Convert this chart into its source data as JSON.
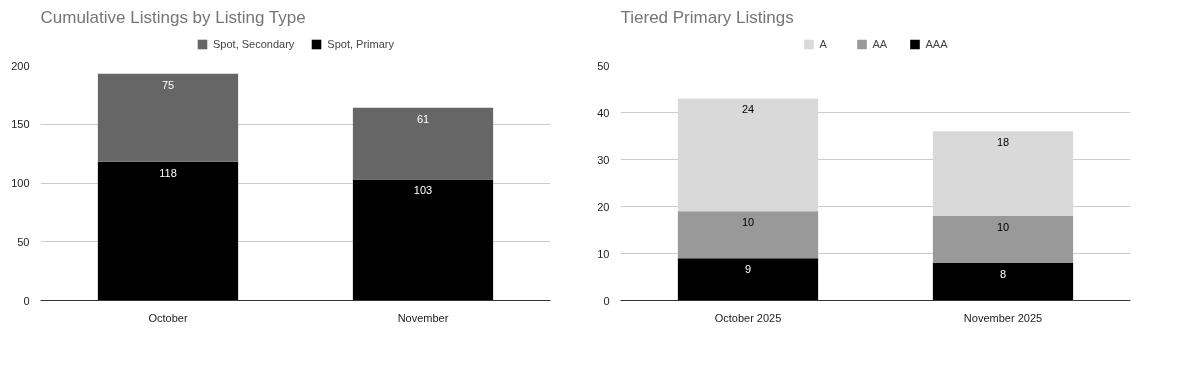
{
  "chart_data": [
    {
      "type": "bar",
      "title": "Cumulative Listings by Listing Type",
      "categories": [
        "October",
        "November"
      ],
      "stacked": true,
      "data_labels": true,
      "ylim": [
        0,
        200
      ],
      "yticks": [
        0,
        50,
        100,
        150,
        200
      ],
      "grid": "y",
      "legend": "top",
      "series": [
        {
          "name": "Spot, Primary",
          "color": "#000000",
          "values": [
            118,
            103
          ]
        },
        {
          "name": "Spot, Secondary",
          "color": "#666666",
          "values": [
            75,
            61
          ]
        }
      ]
    },
    {
      "type": "bar",
      "title": "Tiered Primary Listings",
      "categories": [
        "October 2025",
        "November 2025"
      ],
      "stacked": true,
      "data_labels": true,
      "ylim": [
        0,
        50
      ],
      "yticks": [
        0,
        10,
        20,
        30,
        40,
        50
      ],
      "grid": "y",
      "legend": "top",
      "series": [
        {
          "name": "AAA",
          "color": "#000000",
          "values": [
            9,
            8
          ]
        },
        {
          "name": "AA",
          "color": "#999999",
          "values": [
            10,
            10
          ]
        },
        {
          "name": "A",
          "color": "#d9d9d9",
          "values": [
            24,
            18
          ]
        }
      ]
    }
  ]
}
